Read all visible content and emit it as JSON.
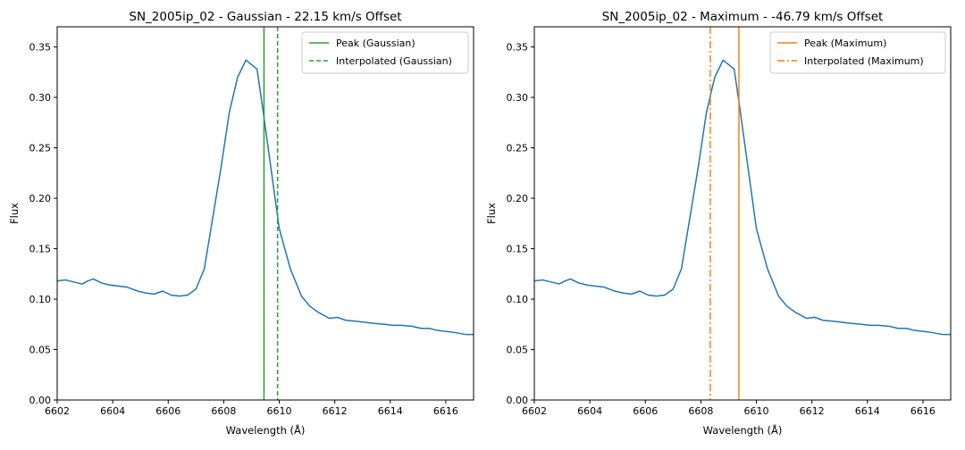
{
  "chart_data": [
    {
      "type": "line",
      "title": "SN_2005ip_02 - Gaussian - 22.15 km/s Offset",
      "xlabel": "Wavelength ($\\AA$)",
      "ylabel": "Flux",
      "xlim": [
        6602,
        6617
      ],
      "ylim": [
        0,
        0.37
      ],
      "x_ticks": [
        6602,
        6604,
        6606,
        6608,
        6610,
        6612,
        6614,
        6616
      ],
      "x_tick_labels": [
        "6602",
        "6604",
        "6606",
        "6608",
        "6610",
        "6612",
        "6614",
        "6616"
      ],
      "y_ticks": [
        0,
        0.05,
        0.1,
        0.15,
        0.2,
        0.25,
        0.3,
        0.35
      ],
      "y_tick_labels": [
        "0.00",
        "0.05",
        "0.10",
        "0.15",
        "0.20",
        "0.25",
        "0.30",
        "0.35"
      ],
      "grid": false,
      "legend_position": "top-right",
      "series": [
        {
          "color": "#1f77b4",
          "x": [
            6602.0,
            6602.3,
            6602.6,
            6602.9,
            6603.1,
            6603.3,
            6603.6,
            6603.9,
            6604.2,
            6604.5,
            6604.9,
            6605.2,
            6605.5,
            6605.8,
            6606.1,
            6606.4,
            6606.7,
            6607.0,
            6607.3,
            6607.6,
            6607.9,
            6608.2,
            6608.5,
            6608.8,
            6609.2,
            6609.4,
            6609.7,
            6610.0,
            6610.4,
            6610.8,
            6611.1,
            6611.4,
            6611.8,
            6612.1,
            6612.4,
            6612.8,
            6613.1,
            6613.4,
            6613.8,
            6614.1,
            6614.4,
            6614.8,
            6615.1,
            6615.4,
            6615.7,
            6616.0,
            6616.3,
            6616.7,
            6617.0
          ],
          "y": [
            0.118,
            0.119,
            0.117,
            0.115,
            0.118,
            0.12,
            0.116,
            0.114,
            0.113,
            0.112,
            0.108,
            0.106,
            0.105,
            0.108,
            0.104,
            0.103,
            0.104,
            0.11,
            0.13,
            0.18,
            0.23,
            0.285,
            0.32,
            0.337,
            0.328,
            0.29,
            0.23,
            0.17,
            0.13,
            0.103,
            0.093,
            0.087,
            0.081,
            0.082,
            0.079,
            0.078,
            0.077,
            0.076,
            0.075,
            0.074,
            0.074,
            0.073,
            0.071,
            0.071,
            0.069,
            0.068,
            0.067,
            0.065,
            0.065
          ]
        }
      ],
      "vlines": [
        {
          "name": "Peak (Gaussian)",
          "x": 6609.45,
          "color": "#2ca02c",
          "style": "solid"
        },
        {
          "name": "Interpolated (Gaussian)",
          "x": 6609.94,
          "color": "#2ca02c",
          "style": "dashed"
        }
      ]
    },
    {
      "type": "line",
      "title": "SN_2005ip_02 - Maximum - -46.79 km/s Offset",
      "xlabel": "Wavelength ($\\AA$)",
      "ylabel": "Flux",
      "xlim": [
        6602,
        6617
      ],
      "ylim": [
        0,
        0.37
      ],
      "x_ticks": [
        6602,
        6604,
        6606,
        6608,
        6610,
        6612,
        6614,
        6616
      ],
      "x_tick_labels": [
        "6602",
        "6604",
        "6606",
        "6608",
        "6610",
        "6612",
        "6614",
        "6616"
      ],
      "y_ticks": [
        0,
        0.05,
        0.1,
        0.15,
        0.2,
        0.25,
        0.3,
        0.35
      ],
      "y_tick_labels": [
        "0.00",
        "0.05",
        "0.10",
        "0.15",
        "0.20",
        "0.25",
        "0.30",
        "0.35"
      ],
      "grid": false,
      "legend_position": "top-right",
      "series": [
        {
          "color": "#1f77b4",
          "x": [
            6602.0,
            6602.3,
            6602.6,
            6602.9,
            6603.1,
            6603.3,
            6603.6,
            6603.9,
            6604.2,
            6604.5,
            6604.9,
            6605.2,
            6605.5,
            6605.8,
            6606.1,
            6606.4,
            6606.7,
            6607.0,
            6607.3,
            6607.6,
            6607.9,
            6608.2,
            6608.5,
            6608.8,
            6609.2,
            6609.4,
            6609.7,
            6610.0,
            6610.4,
            6610.8,
            6611.1,
            6611.4,
            6611.8,
            6612.1,
            6612.4,
            6612.8,
            6613.1,
            6613.4,
            6613.8,
            6614.1,
            6614.4,
            6614.8,
            6615.1,
            6615.4,
            6615.7,
            6616.0,
            6616.3,
            6616.7,
            6617.0
          ],
          "y": [
            0.118,
            0.119,
            0.117,
            0.115,
            0.118,
            0.12,
            0.116,
            0.114,
            0.113,
            0.112,
            0.108,
            0.106,
            0.105,
            0.108,
            0.104,
            0.103,
            0.104,
            0.11,
            0.13,
            0.18,
            0.23,
            0.285,
            0.32,
            0.337,
            0.328,
            0.29,
            0.23,
            0.17,
            0.13,
            0.103,
            0.093,
            0.087,
            0.081,
            0.082,
            0.079,
            0.078,
            0.077,
            0.076,
            0.075,
            0.074,
            0.074,
            0.073,
            0.071,
            0.071,
            0.069,
            0.068,
            0.067,
            0.065,
            0.065
          ]
        }
      ],
      "vlines": [
        {
          "name": "Peak (Maximum)",
          "x": 6609.37,
          "color": "#ff7f0e",
          "style": "solid"
        },
        {
          "name": "Interpolated (Maximum)",
          "x": 6608.34,
          "color": "#ff7f0e",
          "style": "dashdot"
        }
      ]
    }
  ]
}
